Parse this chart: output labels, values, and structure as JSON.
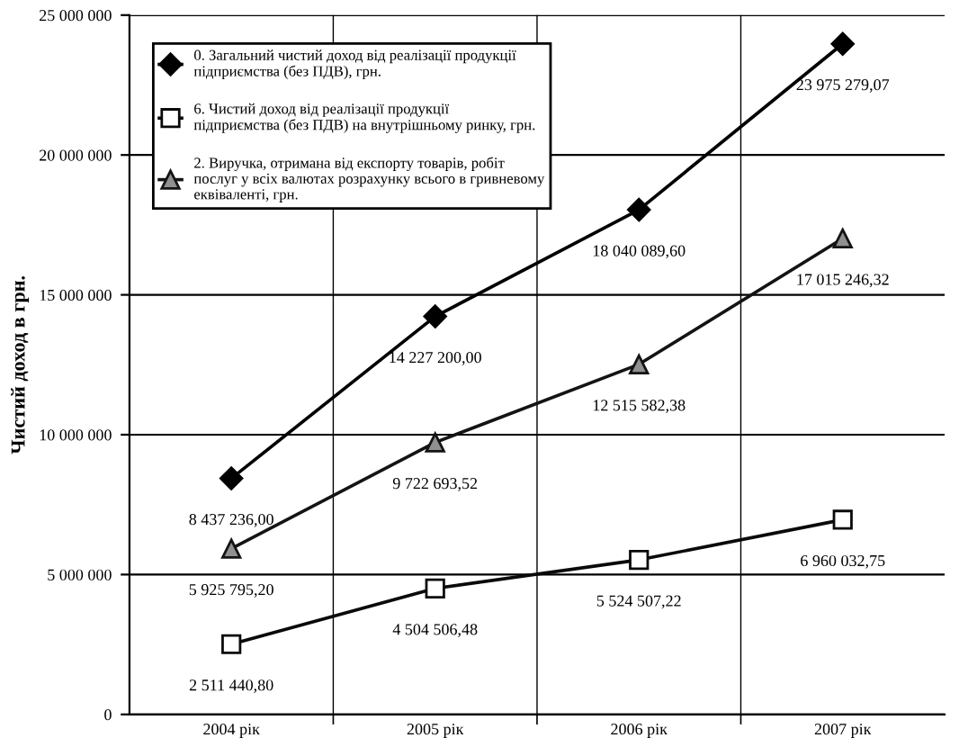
{
  "chart_data": {
    "type": "line",
    "ylabel": "Чистий доход в грн.",
    "categories": [
      "2004 рік",
      "2005 рік",
      "2006 рік",
      "2007 рік"
    ],
    "series": [
      {
        "name": "0. Загальний чистий доход від реалізації продукції підприємства (без ПДВ), грн.",
        "color": "#000000",
        "marker": "diamond",
        "values": [
          8437236.0,
          14227200.0,
          18040089.6,
          23975279.07
        ],
        "value_labels": [
          "8 437 236,00",
          "14 227 200,00",
          "18 040 089,60",
          "23 975 279,07"
        ]
      },
      {
        "name": "6. Чистий доход від реалізації продукції підприємства (без ПДВ) на внутрішньому ринку, грн.",
        "color": "#0a0a0a",
        "marker": "square",
        "values": [
          2511440.8,
          4504506.48,
          5524507.22,
          6960032.75
        ],
        "value_labels": [
          "2 511 440,80",
          "4 504 506,48",
          "5 524 507,22",
          "6 960 032,75"
        ]
      },
      {
        "name": "2. Виручка, отримана від експорту товарів, робіт послуг у всіх валютах розрахунку всього в гривневому еквіваленті, грн.",
        "color": "#141414",
        "marker": "triangle",
        "values": [
          5925795.2,
          9722693.52,
          12515582.38,
          17015246.32
        ],
        "value_labels": [
          "5 925 795,20",
          "9 722 693,52",
          "12 515 582,38",
          "17 015 246,32"
        ]
      }
    ],
    "ylim": [
      0,
      25000000
    ],
    "yticks": [
      0,
      {
        "value": 5000000,
        "label": "5 000 000"
      },
      {
        "value": 10000000,
        "label": "10 000 000"
      },
      {
        "value": 15000000,
        "label": "15 000 000"
      },
      {
        "value": 20000000,
        "label": "20 000 000"
      },
      {
        "value": 25000000,
        "label": "25 000 000"
      }
    ],
    "grid": true,
    "legend": "top left",
    "line_style": "solid"
  }
}
